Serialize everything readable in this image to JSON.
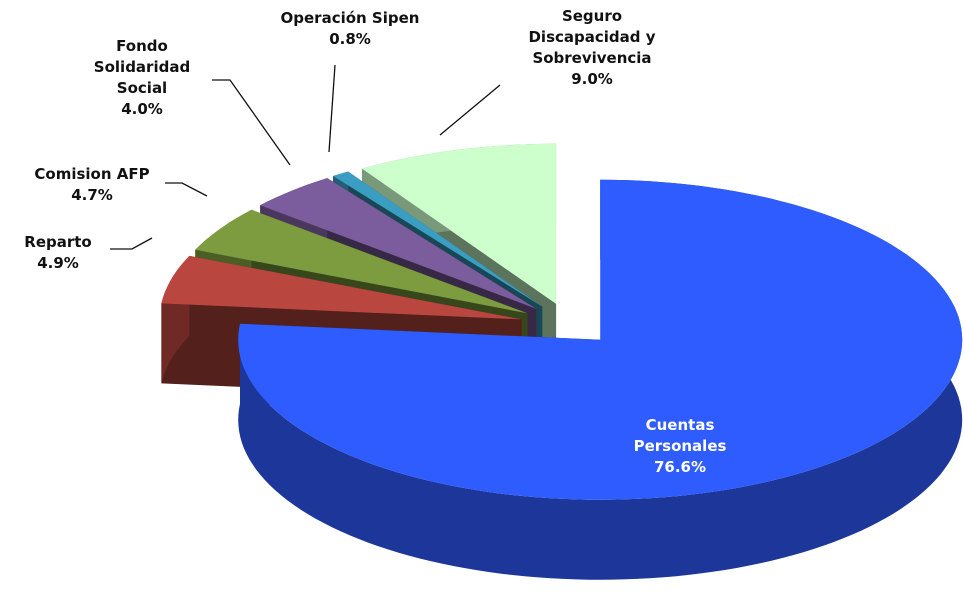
{
  "chart_data": {
    "type": "pie",
    "categories": [
      "Cuentas Personales",
      "Reparto",
      "Comision AFP",
      "Fondo Solidaridad Social",
      "Operación Sipen",
      "Seguro Discapacidad y Sobrevivencia"
    ],
    "values": [
      76.6,
      4.9,
      4.7,
      4.0,
      0.8,
      9.0
    ],
    "value_labels": [
      "76.6%",
      "4.9%",
      "4.7%",
      "4.0%",
      "0.8%",
      "9.0%"
    ],
    "colors": [
      "#2f5cff",
      "#b9463f",
      "#7d9c3f",
      "#7b5c9c",
      "#3a9ec2",
      "#ccffcc"
    ]
  }
}
